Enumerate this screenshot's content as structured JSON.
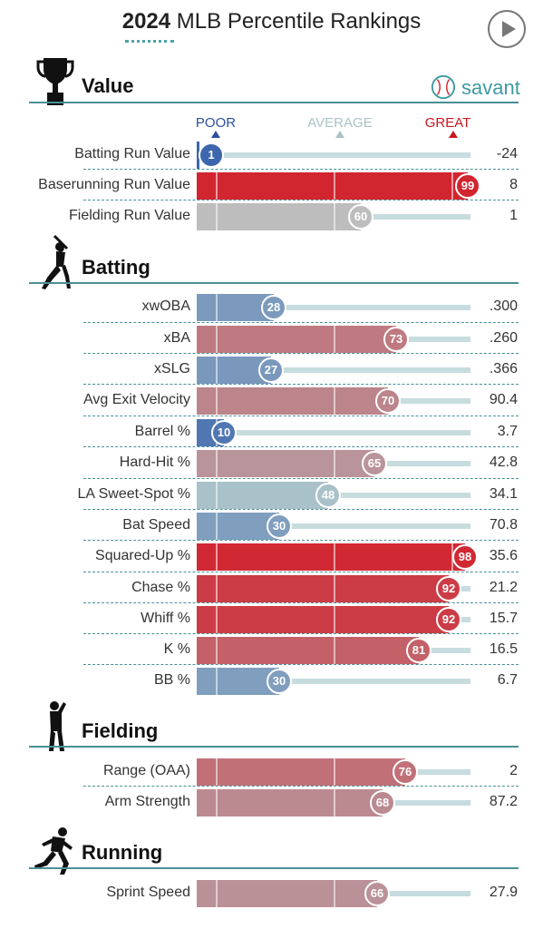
{
  "header": {
    "year": "2024",
    "title": "MLB Percentile Rankings"
  },
  "brand": {
    "name": "savant"
  },
  "scale": {
    "poor": "POOR",
    "average": "AVERAGE",
    "great": "GREAT"
  },
  "colors": {
    "accent": "#4a8f95",
    "poor": "#3a64ad",
    "average": "#aec5c9",
    "great": "#d2222d"
  },
  "icons": {
    "value": "trophy-icon",
    "batting": "batter-icon",
    "fielding": "fielder-icon",
    "running": "runner-icon",
    "play": "play-icon",
    "brand": "baseball-icon"
  },
  "chart_data": {
    "type": "bar",
    "xlim": [
      0,
      100
    ],
    "sections": [
      {
        "title": "Value",
        "metrics": [
          {
            "label": "Batting Run Value",
            "percentile": 1,
            "value": "-24"
          },
          {
            "label": "Baserunning Run Value",
            "percentile": 99,
            "value": "8"
          },
          {
            "label": "Fielding Run Value",
            "percentile": 60,
            "value": "1",
            "neutral": true
          }
        ]
      },
      {
        "title": "Batting",
        "metrics": [
          {
            "label": "xwOBA",
            "percentile": 28,
            "value": ".300"
          },
          {
            "label": "xBA",
            "percentile": 73,
            "value": ".260"
          },
          {
            "label": "xSLG",
            "percentile": 27,
            "value": ".366"
          },
          {
            "label": "Avg Exit Velocity",
            "percentile": 70,
            "value": "90.4"
          },
          {
            "label": "Barrel %",
            "percentile": 10,
            "value": "3.7"
          },
          {
            "label": "Hard-Hit %",
            "percentile": 65,
            "value": "42.8"
          },
          {
            "label": "LA Sweet-Spot %",
            "percentile": 48,
            "value": "34.1"
          },
          {
            "label": "Bat Speed",
            "percentile": 30,
            "value": "70.8"
          },
          {
            "label": "Squared-Up %",
            "percentile": 98,
            "value": "35.6"
          },
          {
            "label": "Chase %",
            "percentile": 92,
            "value": "21.2"
          },
          {
            "label": "Whiff %",
            "percentile": 92,
            "value": "15.7"
          },
          {
            "label": "K %",
            "percentile": 81,
            "value": "16.5"
          },
          {
            "label": "BB %",
            "percentile": 30,
            "value": "6.7"
          }
        ]
      },
      {
        "title": "Fielding",
        "metrics": [
          {
            "label": "Range (OAA)",
            "percentile": 76,
            "value": "2"
          },
          {
            "label": "Arm Strength",
            "percentile": 68,
            "value": "87.2"
          }
        ]
      },
      {
        "title": "Running",
        "metrics": [
          {
            "label": "Sprint Speed",
            "percentile": 66,
            "value": "27.9"
          }
        ]
      }
    ]
  }
}
